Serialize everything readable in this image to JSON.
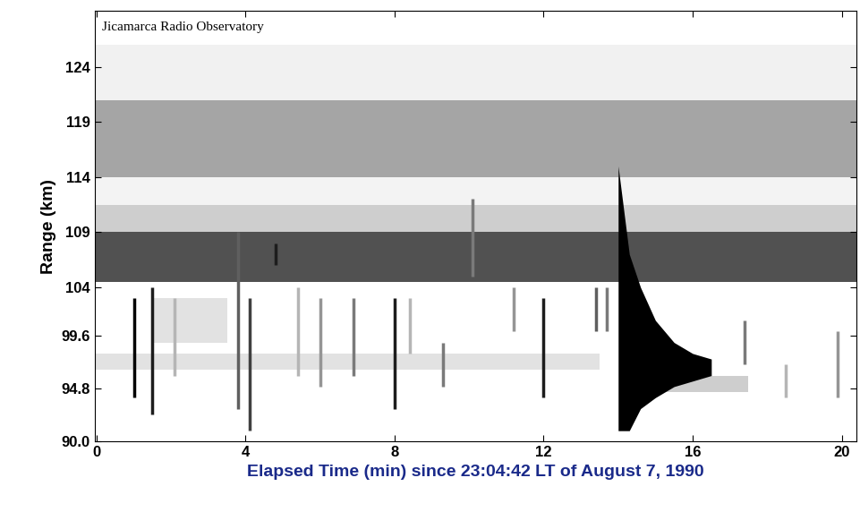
{
  "chart_data": {
    "type": "range_time_intensity",
    "annotation": "Jicamarca Radio Observatory",
    "x_label": "Elapsed Time (min) since 23:04:42 LT of August 7, 1990",
    "y_label": "Range (km)",
    "xlim": [
      -0.05,
      20.4
    ],
    "xticks": [
      0,
      4,
      8,
      12,
      16,
      20
    ],
    "ylim": [
      90,
      129.1
    ],
    "yticks": [
      {
        "value": 90,
        "label": "90.0"
      },
      94.8,
      99.6,
      104,
      109,
      114,
      119,
      124
    ],
    "color": "Greys",
    "layers": [
      {
        "t_start": -0.05,
        "t_end": 20.4,
        "range_bottom": 121,
        "range_top": 126,
        "intensity": 0.12
      },
      {
        "t_start": -0.05,
        "t_end": 20.4,
        "range_bottom": 114,
        "range_top": 121,
        "intensity": 0.45
      },
      {
        "t_start": -0.05,
        "t_end": 20.4,
        "range_bottom": 111.5,
        "range_top": 114,
        "intensity": 0.1
      },
      {
        "t_start": -0.05,
        "t_end": 20.4,
        "range_bottom": 109,
        "range_top": 111.5,
        "intensity": 0.3
      },
      {
        "t_start": -0.05,
        "t_end": 20.4,
        "range_bottom": 104.5,
        "range_top": 109,
        "intensity": 0.75
      },
      {
        "t_start": 1.5,
        "t_end": 3.5,
        "range_bottom": 99,
        "range_top": 103,
        "intensity": 0.2
      },
      {
        "t_start": -0.05,
        "t_end": 13.5,
        "range_bottom": 96.5,
        "range_top": 98,
        "intensity": 0.2
      },
      {
        "t_start": 15,
        "t_end": 17.5,
        "range_bottom": 94.5,
        "range_top": 96,
        "intensity": 0.3
      }
    ],
    "echoes": [
      {
        "time": 1.0,
        "range_bottom": 94,
        "range_top": 103,
        "intensity": 1.0
      },
      {
        "time": 1.5,
        "range_bottom": 92.5,
        "range_top": 104,
        "intensity": 0.9
      },
      {
        "time": 2.1,
        "range_bottom": 96,
        "range_top": 103,
        "intensity": 0.4
      },
      {
        "time": 3.8,
        "range_bottom": 93,
        "range_top": 109,
        "intensity": 0.7
      },
      {
        "time": 4.1,
        "range_bottom": 91,
        "range_top": 103,
        "intensity": 0.8
      },
      {
        "time": 4.8,
        "range_bottom": 106,
        "range_top": 108,
        "intensity": 0.9
      },
      {
        "time": 5.4,
        "range_bottom": 96,
        "range_top": 104,
        "intensity": 0.4
      },
      {
        "time": 6.0,
        "range_bottom": 95,
        "range_top": 103,
        "intensity": 0.5
      },
      {
        "time": 6.9,
        "range_bottom": 96,
        "range_top": 103,
        "intensity": 0.6
      },
      {
        "time": 8.0,
        "range_bottom": 93,
        "range_top": 103,
        "intensity": 0.9
      },
      {
        "time": 8.4,
        "range_bottom": 98,
        "range_top": 103,
        "intensity": 0.4
      },
      {
        "time": 9.3,
        "range_bottom": 95,
        "range_top": 99,
        "intensity": 0.6
      },
      {
        "time": 10.1,
        "range_bottom": 105,
        "range_top": 112,
        "intensity": 0.6
      },
      {
        "time": 11.2,
        "range_bottom": 100,
        "range_top": 104,
        "intensity": 0.5
      },
      {
        "time": 12.0,
        "range_bottom": 94,
        "range_top": 103,
        "intensity": 0.9
      },
      {
        "time": 13.4,
        "range_bottom": 100,
        "range_top": 104,
        "intensity": 0.7
      },
      {
        "time": 13.7,
        "range_bottom": 100,
        "range_top": 104,
        "intensity": 0.6
      },
      {
        "time": 17.4,
        "range_bottom": 97,
        "range_top": 101,
        "intensity": 0.6
      },
      {
        "time": 18.5,
        "range_bottom": 94,
        "range_top": 97,
        "intensity": 0.4
      },
      {
        "time": 19.9,
        "range_bottom": 94,
        "range_top": 100,
        "intensity": 0.5
      }
    ],
    "trail": {
      "time": [
        14.0,
        14.3,
        14.6,
        15.0,
        15.5,
        16.0,
        16.5
      ],
      "range_bottom": [
        91,
        91,
        93,
        94,
        95,
        95.5,
        96
      ],
      "range_top": [
        115,
        107,
        104,
        101,
        99,
        98,
        97.5
      ],
      "intensity": 1.0
    }
  }
}
